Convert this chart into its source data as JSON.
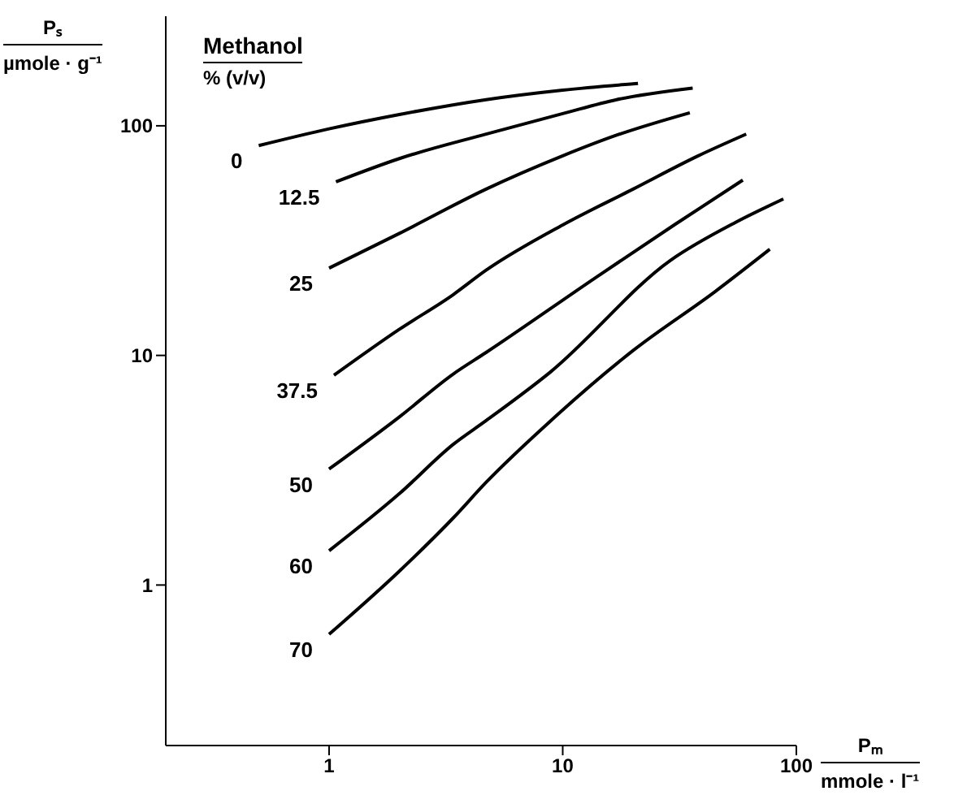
{
  "chart_data": {
    "type": "line",
    "xlabel": "Pₘ\nmmole · l⁻¹",
    "ylabel": "Pₛ\nµmole · g⁻¹",
    "legend_title": "Methanol\n% (v/v)",
    "log": "xy",
    "xlim": [
      0.2,
      100
    ],
    "ylim": [
      0.2,
      300
    ],
    "xticks": [
      1,
      10,
      100
    ],
    "yticks": [
      1,
      10,
      100
    ],
    "grid": false,
    "legend": "left",
    "marker": "none",
    "line_style": "solid",
    "series": [
      {
        "name": "0",
        "color": "#000000",
        "x": [
          0.5,
          1,
          2,
          4.7,
          10,
          21
        ],
        "values": [
          82,
          97,
          112,
          130,
          143,
          153
        ]
      },
      {
        "name": "12.5",
        "color": "#000000",
        "x": [
          1.07,
          2,
          4.7,
          10,
          17,
          36
        ],
        "values": [
          57,
          72,
          92,
          113,
          130,
          146
        ]
      },
      {
        "name": "25",
        "color": "#000000",
        "x": [
          1,
          2,
          4.7,
          10,
          17,
          35
        ],
        "values": [
          24,
          34,
          53,
          74,
          91,
          114
        ]
      },
      {
        "name": "37.5",
        "color": "#000000",
        "x": [
          1.05,
          2,
          3.4,
          4.7,
          10,
          20,
          38,
          61
        ],
        "values": [
          8.2,
          13,
          18.4,
          23.5,
          37,
          53,
          74,
          92
        ]
      },
      {
        "name": "50",
        "color": "#000000",
        "x": [
          1,
          2,
          3.4,
          4.7,
          14,
          30,
          59
        ],
        "values": [
          3.2,
          5.4,
          8.3,
          10.3,
          22,
          37,
          58
        ]
      },
      {
        "name": "60",
        "color": "#000000",
        "x": [
          1,
          2,
          3.4,
          4.7,
          8.9,
          29,
          55,
          88
        ],
        "values": [
          1.41,
          2.5,
          4.1,
          5.2,
          8.5,
          26,
          38,
          48
        ]
      },
      {
        "name": "70",
        "color": "#000000",
        "x": [
          1,
          2,
          3.4,
          4.7,
          8.9,
          20,
          45,
          77
        ],
        "values": [
          0.61,
          1.15,
          1.96,
          2.8,
          5.2,
          10.5,
          19,
          29
        ]
      }
    ]
  }
}
